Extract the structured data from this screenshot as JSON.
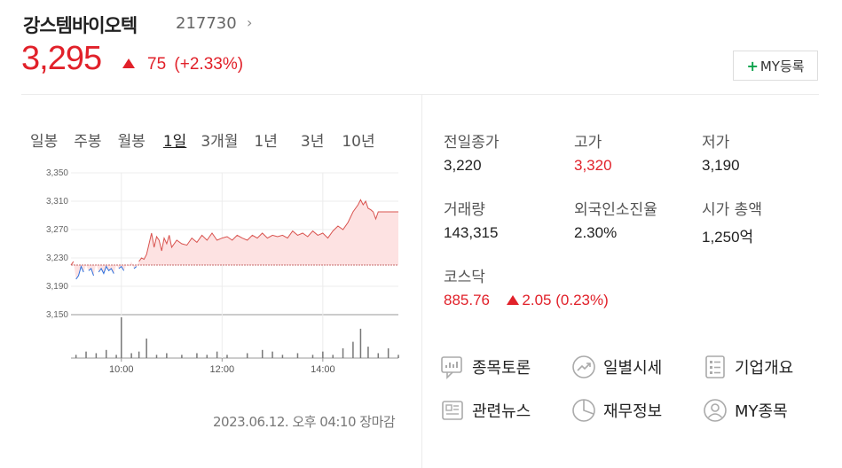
{
  "header": {
    "name": "강스템바이오텍",
    "code": "217730",
    "chevron": "›"
  },
  "quote": {
    "price": "3,295",
    "change": "75",
    "change_pct": "(+2.33%)",
    "direction": "up",
    "color_up": "#e1212a",
    "color_down": "#2d6fdc"
  },
  "my_button": {
    "plus": "+",
    "label": "MY등록"
  },
  "periods": [
    {
      "label": "일봉",
      "active": false
    },
    {
      "label": "주봉",
      "active": false
    },
    {
      "label": "월봉",
      "active": false
    },
    {
      "label": "1일",
      "active": true
    },
    {
      "label": "3개월",
      "active": false
    },
    {
      "label": "1년",
      "active": false
    },
    {
      "label": "3년",
      "active": false
    },
    {
      "label": "10년",
      "active": false
    }
  ],
  "chart_data": {
    "type": "line",
    "ylim": [
      3150,
      3350
    ],
    "yticks": [
      "3,350",
      "3,310",
      "3,270",
      "3,230",
      "3,190",
      "3,150"
    ],
    "ytick_values": [
      3350,
      3310,
      3270,
      3230,
      3190,
      3150
    ],
    "xticks": [
      "10:00",
      "12:00",
      "14:00"
    ],
    "xtick_hours": [
      10,
      12,
      14
    ],
    "prev_close": 3220,
    "session_start_hour": 9,
    "session_end_hour": 15.5,
    "price_series": [
      [
        9.0,
        3220
      ],
      [
        9.05,
        3225
      ],
      [
        9.1,
        3200
      ],
      [
        9.15,
        3205
      ],
      [
        9.2,
        3218
      ],
      [
        9.25,
        3210
      ],
      [
        9.3,
        3220
      ],
      [
        9.35,
        3212
      ],
      [
        9.4,
        3215
      ],
      [
        9.45,
        3205
      ],
      [
        9.5,
        3222
      ],
      [
        9.55,
        3210
      ],
      [
        9.6,
        3215
      ],
      [
        9.65,
        3208
      ],
      [
        9.7,
        3218
      ],
      [
        9.75,
        3212
      ],
      [
        9.8,
        3215
      ],
      [
        9.85,
        3208
      ],
      [
        9.9,
        3220
      ],
      [
        9.95,
        3215
      ],
      [
        10.0,
        3218
      ],
      [
        10.05,
        3212
      ],
      [
        10.1,
        3220
      ],
      [
        10.15,
        3218
      ],
      [
        10.2,
        3225
      ],
      [
        10.25,
        3215
      ],
      [
        10.3,
        3218
      ],
      [
        10.35,
        3225
      ],
      [
        10.4,
        3230
      ],
      [
        10.45,
        3228
      ],
      [
        10.5,
        3235
      ],
      [
        10.55,
        3250
      ],
      [
        10.6,
        3265
      ],
      [
        10.65,
        3245
      ],
      [
        10.7,
        3260
      ],
      [
        10.75,
        3255
      ],
      [
        10.8,
        3240
      ],
      [
        10.85,
        3258
      ],
      [
        10.9,
        3250
      ],
      [
        10.95,
        3262
      ],
      [
        11.0,
        3245
      ],
      [
        11.1,
        3255
      ],
      [
        11.2,
        3250
      ],
      [
        11.3,
        3248
      ],
      [
        11.4,
        3258
      ],
      [
        11.5,
        3252
      ],
      [
        11.6,
        3262
      ],
      [
        11.7,
        3255
      ],
      [
        11.8,
        3265
      ],
      [
        11.9,
        3255
      ],
      [
        12.0,
        3258
      ],
      [
        12.1,
        3260
      ],
      [
        12.2,
        3255
      ],
      [
        12.3,
        3262
      ],
      [
        12.4,
        3258
      ],
      [
        12.5,
        3255
      ],
      [
        12.6,
        3262
      ],
      [
        12.7,
        3258
      ],
      [
        12.8,
        3265
      ],
      [
        12.9,
        3258
      ],
      [
        13.0,
        3262
      ],
      [
        13.1,
        3260
      ],
      [
        13.2,
        3262
      ],
      [
        13.3,
        3258
      ],
      [
        13.4,
        3268
      ],
      [
        13.5,
        3262
      ],
      [
        13.6,
        3265
      ],
      [
        13.7,
        3260
      ],
      [
        13.8,
        3268
      ],
      [
        13.9,
        3262
      ],
      [
        14.0,
        3265
      ],
      [
        14.1,
        3258
      ],
      [
        14.2,
        3268
      ],
      [
        14.3,
        3275
      ],
      [
        14.4,
        3270
      ],
      [
        14.5,
        3280
      ],
      [
        14.6,
        3295
      ],
      [
        14.7,
        3305
      ],
      [
        14.75,
        3312
      ],
      [
        14.8,
        3305
      ],
      [
        14.85,
        3310
      ],
      [
        14.9,
        3300
      ],
      [
        14.95,
        3298
      ],
      [
        15.0,
        3295
      ],
      [
        15.05,
        3285
      ],
      [
        15.1,
        3295
      ],
      [
        15.2,
        3295
      ],
      [
        15.3,
        3295
      ],
      [
        15.4,
        3295
      ],
      [
        15.5,
        3295
      ]
    ],
    "volume_series": [
      [
        9.1,
        2
      ],
      [
        9.3,
        4
      ],
      [
        9.5,
        3
      ],
      [
        9.7,
        5
      ],
      [
        9.9,
        2
      ],
      [
        10.0,
        25
      ],
      [
        10.2,
        3
      ],
      [
        10.35,
        4
      ],
      [
        10.5,
        12
      ],
      [
        10.7,
        2
      ],
      [
        10.9,
        3
      ],
      [
        11.2,
        2
      ],
      [
        11.5,
        3
      ],
      [
        11.7,
        2
      ],
      [
        11.9,
        4
      ],
      [
        12.1,
        2
      ],
      [
        12.5,
        3
      ],
      [
        12.8,
        5
      ],
      [
        13.0,
        4
      ],
      [
        13.2,
        2
      ],
      [
        13.5,
        3
      ],
      [
        13.8,
        2
      ],
      [
        14.0,
        4
      ],
      [
        14.2,
        2
      ],
      [
        14.4,
        6
      ],
      [
        14.6,
        10
      ],
      [
        14.75,
        18
      ],
      [
        14.9,
        7
      ],
      [
        15.1,
        3
      ],
      [
        15.3,
        6
      ],
      [
        15.5,
        2
      ]
    ]
  },
  "timestamp": "2023.06.12. 오후 04:10 장마감",
  "stats": {
    "prev_close_label": "전일종가",
    "prev_close": "3,220",
    "high_label": "고가",
    "high": "3,320",
    "low_label": "저가",
    "low": "3,190",
    "volume_label": "거래량",
    "volume": "143,315",
    "foreign_label": "외국인소진율",
    "foreign": "2.30%",
    "mktcap_label": "시가 총액",
    "mktcap": "1,250억"
  },
  "index": {
    "label": "코스닥",
    "value": "885.76",
    "change": "2.05",
    "change_pct": "(0.23%)"
  },
  "links": [
    {
      "label": "종목토론",
      "icon": "discussion-icon"
    },
    {
      "label": "일별시세",
      "icon": "trend-icon"
    },
    {
      "label": "기업개요",
      "icon": "document-icon"
    },
    {
      "label": "관련뉴스",
      "icon": "news-icon"
    },
    {
      "label": "재무정보",
      "icon": "pie-chart-icon"
    },
    {
      "label": "MY종목",
      "icon": "user-icon"
    }
  ]
}
